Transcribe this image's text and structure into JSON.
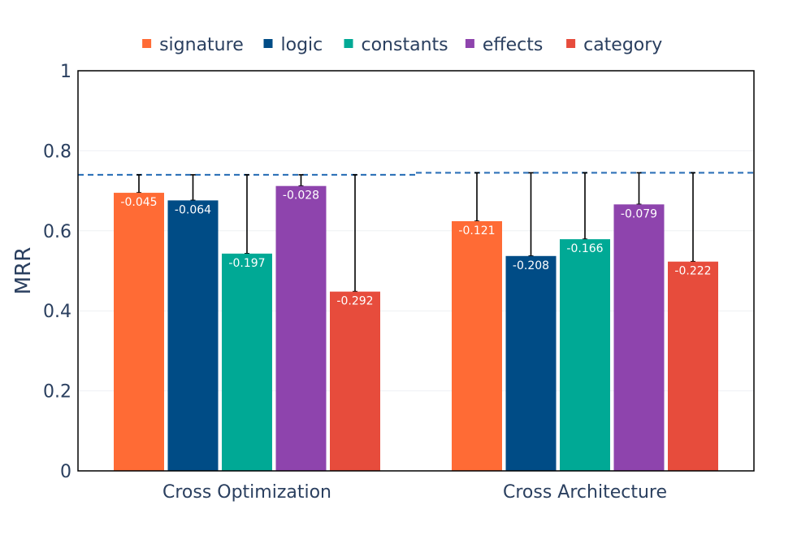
{
  "chart_data": {
    "type": "bar",
    "categories": [
      "Cross Optimization",
      "Cross Architecture"
    ],
    "ylabel": "MRR",
    "xlabel": "",
    "ylim": [
      0,
      1
    ],
    "yticks": [
      0,
      0.2,
      0.4,
      0.6,
      0.8,
      1
    ],
    "ytick_labels": [
      "0",
      "0.2",
      "0.4",
      "0.6",
      "0.8",
      "1"
    ],
    "grid": true,
    "legend_position": "top",
    "baselines": [
      0.74,
      0.745
    ],
    "series": [
      {
        "name": "signature",
        "color": "#ff6b35",
        "values": [
          0.695,
          0.624
        ],
        "labels": [
          "-0.045",
          "-0.121"
        ]
      },
      {
        "name": "logic",
        "color": "#004c86",
        "values": [
          0.676,
          0.537
        ],
        "labels": [
          "-0.064",
          "-0.208"
        ]
      },
      {
        "name": "constants",
        "color": "#00a995",
        "values": [
          0.543,
          0.579
        ],
        "labels": [
          "-0.197",
          "-0.166"
        ]
      },
      {
        "name": "effects",
        "color": "#8e44ad",
        "values": [
          0.712,
          0.666
        ],
        "labels": [
          "-0.028",
          "-0.079"
        ]
      },
      {
        "name": "category",
        "color": "#e74c3c",
        "values": [
          0.448,
          0.523
        ],
        "labels": [
          "-0.292",
          "-0.222"
        ]
      }
    ]
  }
}
